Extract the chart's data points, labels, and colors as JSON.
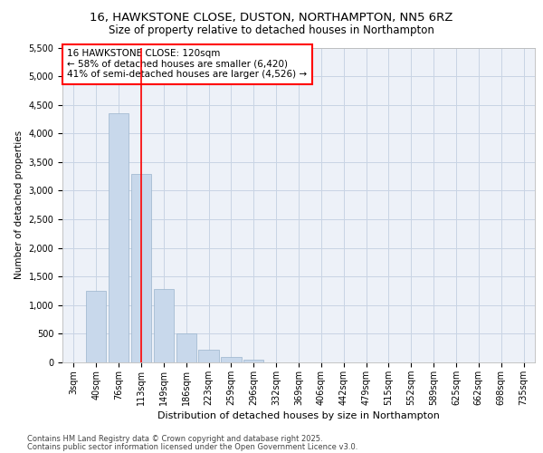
{
  "title_line1": "16, HAWKSTONE CLOSE, DUSTON, NORTHAMPTON, NN5 6RZ",
  "title_line2": "Size of property relative to detached houses in Northampton",
  "xlabel": "Distribution of detached houses by size in Northampton",
  "ylabel": "Number of detached properties",
  "categories": [
    "3sqm",
    "40sqm",
    "76sqm",
    "113sqm",
    "149sqm",
    "186sqm",
    "223sqm",
    "259sqm",
    "296sqm",
    "332sqm",
    "369sqm",
    "406sqm",
    "442sqm",
    "479sqm",
    "515sqm",
    "552sqm",
    "589sqm",
    "625sqm",
    "662sqm",
    "698sqm",
    "735sqm"
  ],
  "values": [
    0,
    1250,
    4350,
    3300,
    1280,
    500,
    220,
    90,
    50,
    0,
    0,
    0,
    0,
    0,
    0,
    0,
    0,
    0,
    0,
    0,
    0
  ],
  "bar_color": "#c8d8eb",
  "bar_edgecolor": "#9ab4cc",
  "grid_color": "#c8d4e4",
  "background_color": "#edf1f8",
  "vline_x_index": 3,
  "vline_color": "red",
  "annotation_text": "16 HAWKSTONE CLOSE: 120sqm\n← 58% of detached houses are smaller (6,420)\n41% of semi-detached houses are larger (4,526) →",
  "annotation_box_color": "white",
  "annotation_box_edgecolor": "red",
  "ylim": [
    0,
    5500
  ],
  "yticks": [
    0,
    500,
    1000,
    1500,
    2000,
    2500,
    3000,
    3500,
    4000,
    4500,
    5000,
    5500
  ],
  "footer_line1": "Contains HM Land Registry data © Crown copyright and database right 2025.",
  "footer_line2": "Contains public sector information licensed under the Open Government Licence v3.0.",
  "title_fontsize": 9.5,
  "subtitle_fontsize": 8.5,
  "axis_label_fontsize": 8,
  "tick_fontsize": 7,
  "annotation_fontsize": 7.5,
  "footer_fontsize": 6,
  "ylabel_fontsize": 7.5
}
